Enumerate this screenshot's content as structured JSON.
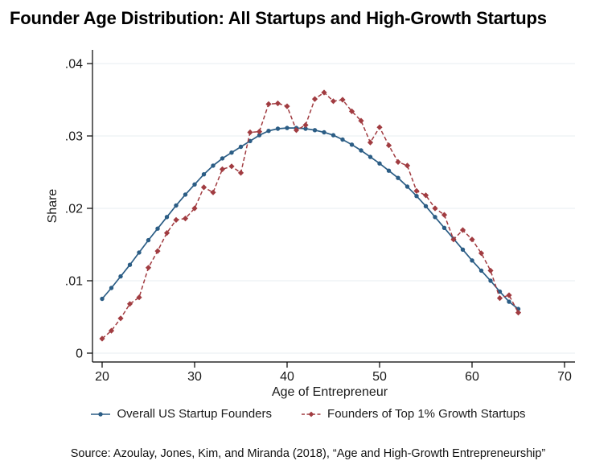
{
  "title": "Founder Age Distribution: All Startups and High-Growth Startups",
  "source_note": "Source: Azoulay, Jones, Kim, and Miranda (2018), “Age and High-Growth Entrepreneurship”",
  "colors": {
    "background": "#ffffff",
    "grid": "#e7edf2",
    "axis": "#000000",
    "tick_text": "#1a1a1a",
    "series_overall": "#2b5d85",
    "series_top1": "#a13c41"
  },
  "chart_data": {
    "type": "line",
    "title": "Founder Age Distribution: All Startups and High-Growth Startups",
    "xlabel": "Age of Entrepreneur",
    "ylabel": "Share",
    "x_ticks": [
      20,
      30,
      40,
      50,
      60,
      70
    ],
    "y_ticks": [
      {
        "value": 0,
        "label": "0"
      },
      {
        "value": 0.01,
        "label": ".01"
      },
      {
        "value": 0.02,
        "label": ".02"
      },
      {
        "value": 0.03,
        "label": ".03"
      },
      {
        "value": 0.04,
        "label": ".04"
      }
    ],
    "xlim": [
      19,
      71
    ],
    "ylim": [
      0,
      0.042
    ],
    "grid": "horizontal",
    "legend_position": "bottom",
    "x": [
      20,
      21,
      22,
      23,
      24,
      25,
      26,
      27,
      28,
      29,
      30,
      31,
      32,
      33,
      34,
      35,
      36,
      37,
      38,
      39,
      40,
      41,
      42,
      43,
      44,
      45,
      46,
      47,
      48,
      49,
      50,
      51,
      52,
      53,
      54,
      55,
      56,
      57,
      58,
      59,
      60,
      61,
      62,
      63,
      64,
      65
    ],
    "series": [
      {
        "name": "Overall US Startup Founders",
        "color": "#2b5d85",
        "marker": "circle",
        "line": "solid",
        "values": [
          0.0075,
          0.009,
          0.0106,
          0.0122,
          0.0139,
          0.0156,
          0.0172,
          0.0188,
          0.0204,
          0.0219,
          0.0233,
          0.0247,
          0.0259,
          0.0269,
          0.0277,
          0.0285,
          0.0293,
          0.0301,
          0.0307,
          0.031,
          0.0311,
          0.0311,
          0.031,
          0.0308,
          0.0305,
          0.0301,
          0.0295,
          0.0288,
          0.028,
          0.0271,
          0.0262,
          0.0252,
          0.0242,
          0.023,
          0.0217,
          0.0203,
          0.0188,
          0.0173,
          0.0158,
          0.0143,
          0.0128,
          0.0114,
          0.01,
          0.0085,
          0.0071,
          0.0061
        ]
      },
      {
        "name": "Founders of Top 1% Growth Startups",
        "color": "#a13c41",
        "marker": "diamond",
        "line": "dashed",
        "values": [
          0.002,
          0.0031,
          0.0048,
          0.0068,
          0.0077,
          0.0118,
          0.0141,
          0.0166,
          0.0184,
          0.0186,
          0.02,
          0.0229,
          0.0222,
          0.0254,
          0.0258,
          0.0249,
          0.0305,
          0.0306,
          0.0344,
          0.0345,
          0.0341,
          0.0308,
          0.0315,
          0.0351,
          0.036,
          0.0348,
          0.035,
          0.0334,
          0.0321,
          0.0291,
          0.0312,
          0.0287,
          0.0264,
          0.0259,
          0.0224,
          0.0218,
          0.02,
          0.0191,
          0.0157,
          0.017,
          0.0157,
          0.0138,
          0.0114,
          0.0076,
          0.008,
          0.0056
        ]
      }
    ]
  }
}
